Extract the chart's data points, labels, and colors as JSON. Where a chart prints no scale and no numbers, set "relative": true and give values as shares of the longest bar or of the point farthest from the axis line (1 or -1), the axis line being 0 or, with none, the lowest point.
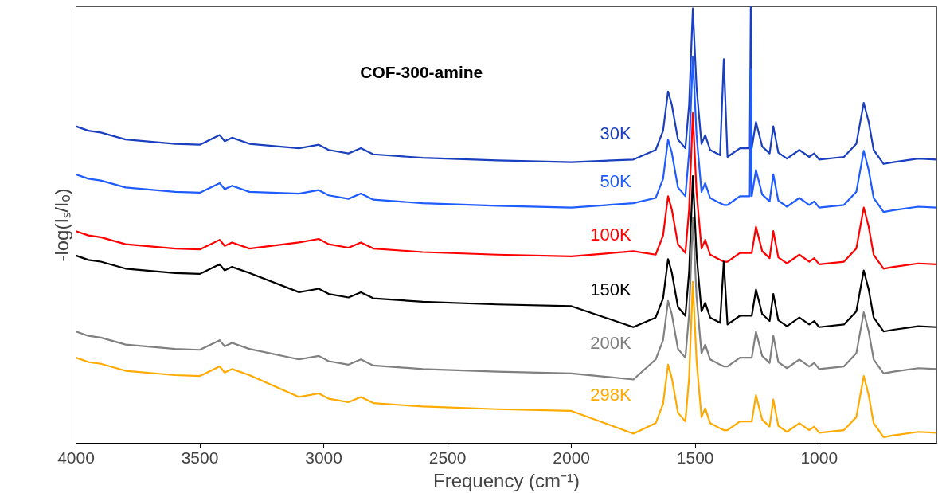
{
  "chart_data": {
    "type": "line",
    "title": "COF-300-amine",
    "xlabel": "Frequency (cm⁻¹)",
    "ylabel": "-log(Iₛ/Iₒ)",
    "relative": true,
    "tick_labels": "x",
    "grid": false,
    "xlim": [
      4000,
      525
    ],
    "xticks": [
      4000,
      3500,
      3000,
      2500,
      2000,
      1500,
      1000
    ],
    "x": [
      4000,
      3950,
      3900,
      3800,
      3600,
      3500,
      3420,
      3400,
      3370,
      3300,
      3100,
      3020,
      2980,
      2900,
      2850,
      2800,
      2600,
      2300,
      2000,
      1750,
      1660,
      1630,
      1610,
      1595,
      1570,
      1540,
      1525,
      1510,
      1495,
      1475,
      1460,
      1440,
      1400,
      1385,
      1370,
      1320,
      1280,
      1276,
      1272,
      1255,
      1230,
      1200,
      1185,
      1165,
      1130,
      1080,
      1040,
      1020,
      1000,
      900,
      850,
      820,
      800,
      780,
      740,
      700,
      600,
      525
    ],
    "series": [
      {
        "name": "30K",
        "color": "#1a3fbf",
        "values": [
          0.726,
          0.716,
          0.712,
          0.696,
          0.686,
          0.684,
          0.706,
          0.692,
          0.7,
          0.686,
          0.676,
          0.684,
          0.672,
          0.664,
          0.676,
          0.662,
          0.654,
          0.648,
          0.644,
          0.65,
          0.672,
          0.716,
          0.806,
          0.776,
          0.696,
          0.676,
          0.776,
          0.996,
          0.816,
          0.686,
          0.706,
          0.672,
          0.66,
          0.88,
          0.656,
          0.676,
          0.676,
          1.0,
          0.676,
          0.736,
          0.68,
          0.664,
          0.726,
          0.666,
          0.652,
          0.672,
          0.656,
          0.664,
          0.65,
          0.656,
          0.686,
          0.78,
          0.736,
          0.672,
          0.64,
          0.644,
          0.652,
          0.65
        ]
      },
      {
        "name": "50K",
        "color": "#1f5cff",
        "values": [
          0.616,
          0.606,
          0.602,
          0.586,
          0.576,
          0.574,
          0.596,
          0.582,
          0.59,
          0.576,
          0.572,
          0.58,
          0.568,
          0.56,
          0.572,
          0.558,
          0.55,
          0.544,
          0.54,
          0.55,
          0.562,
          0.606,
          0.696,
          0.666,
          0.586,
          0.566,
          0.666,
          0.886,
          0.706,
          0.576,
          0.596,
          0.562,
          0.55,
          0.546,
          0.546,
          0.566,
          0.566,
          0.856,
          0.566,
          0.626,
          0.57,
          0.554,
          0.616,
          0.556,
          0.542,
          0.562,
          0.546,
          0.554,
          0.54,
          0.546,
          0.576,
          0.67,
          0.626,
          0.562,
          0.53,
          0.534,
          0.542,
          0.54
        ]
      },
      {
        "name": "100K",
        "color": "#ff0000",
        "values": [
          0.486,
          0.476,
          0.472,
          0.456,
          0.446,
          0.444,
          0.466,
          0.452,
          0.46,
          0.446,
          0.46,
          0.468,
          0.456,
          0.448,
          0.46,
          0.446,
          0.438,
          0.432,
          0.428,
          0.44,
          0.432,
          0.476,
          0.566,
          0.536,
          0.456,
          0.436,
          0.536,
          0.756,
          0.576,
          0.446,
          0.466,
          0.432,
          0.42,
          0.416,
          0.416,
          0.436,
          0.436,
          0.436,
          0.436,
          0.496,
          0.44,
          0.424,
          0.486,
          0.426,
          0.412,
          0.432,
          0.416,
          0.424,
          0.41,
          0.416,
          0.446,
          0.54,
          0.496,
          0.432,
          0.4,
          0.404,
          0.412,
          0.41
        ]
      },
      {
        "name": "150K",
        "color": "#000000",
        "values": [
          0.43,
          0.42,
          0.416,
          0.4,
          0.39,
          0.388,
          0.41,
          0.396,
          0.404,
          0.39,
          0.346,
          0.354,
          0.342,
          0.334,
          0.346,
          0.332,
          0.324,
          0.318,
          0.314,
          0.266,
          0.288,
          0.332,
          0.422,
          0.392,
          0.312,
          0.292,
          0.392,
          0.612,
          0.432,
          0.302,
          0.322,
          0.288,
          0.276,
          0.416,
          0.272,
          0.292,
          0.292,
          0.292,
          0.292,
          0.352,
          0.296,
          0.28,
          0.342,
          0.282,
          0.268,
          0.288,
          0.272,
          0.28,
          0.266,
          0.272,
          0.302,
          0.396,
          0.352,
          0.288,
          0.256,
          0.26,
          0.268,
          0.266
        ]
      },
      {
        "name": "200K",
        "color": "#808080",
        "values": [
          0.256,
          0.246,
          0.242,
          0.226,
          0.216,
          0.214,
          0.236,
          0.222,
          0.23,
          0.216,
          0.192,
          0.2,
          0.188,
          0.18,
          0.192,
          0.178,
          0.17,
          0.164,
          0.16,
          0.146,
          0.192,
          0.236,
          0.326,
          0.296,
          0.216,
          0.196,
          0.296,
          0.516,
          0.336,
          0.206,
          0.226,
          0.192,
          0.18,
          0.176,
          0.176,
          0.196,
          0.196,
          0.196,
          0.196,
          0.256,
          0.2,
          0.184,
          0.246,
          0.186,
          0.172,
          0.192,
          0.176,
          0.184,
          0.17,
          0.176,
          0.206,
          0.3,
          0.256,
          0.192,
          0.16,
          0.164,
          0.172,
          0.17
        ]
      },
      {
        "name": "298K",
        "color": "#ffaa00",
        "values": [
          0.196,
          0.186,
          0.182,
          0.166,
          0.156,
          0.154,
          0.176,
          0.162,
          0.17,
          0.156,
          0.106,
          0.114,
          0.102,
          0.094,
          0.106,
          0.092,
          0.084,
          0.078,
          0.074,
          0.022,
          0.046,
          0.09,
          0.18,
          0.15,
          0.07,
          0.05,
          0.15,
          0.37,
          0.19,
          0.06,
          0.08,
          0.046,
          0.034,
          0.03,
          0.03,
          0.05,
          0.05,
          0.05,
          0.05,
          0.11,
          0.054,
          0.038,
          0.1,
          0.04,
          0.026,
          0.046,
          0.03,
          0.038,
          0.024,
          0.03,
          0.06,
          0.154,
          0.11,
          0.046,
          0.014,
          0.018,
          0.026,
          0.024
        ]
      }
    ]
  }
}
